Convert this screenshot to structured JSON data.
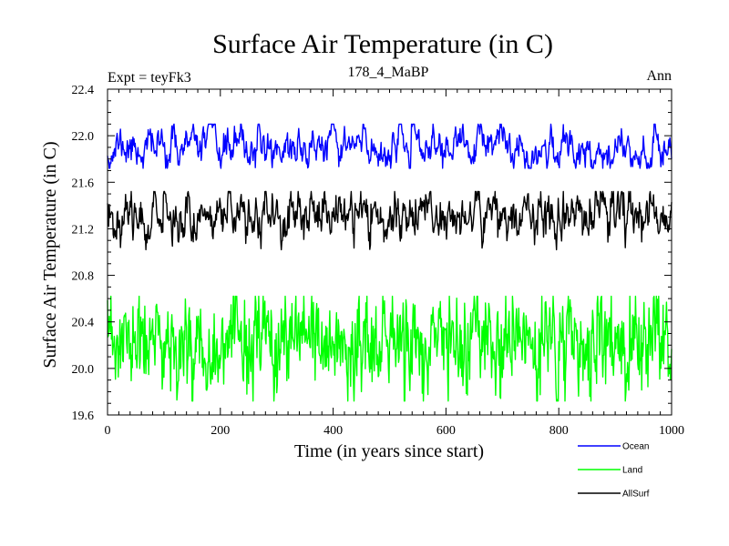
{
  "chart_data": {
    "type": "line",
    "title": "Surface Air Temperature (in C)",
    "subtitle": "178_4_MaBP",
    "left_note": "Expt = teyFk3",
    "right_note": "Ann",
    "xlabel": "Time (in years since start)",
    "ylabel": "Surface Air Temperature (in C)",
    "xlim": [
      0,
      1000
    ],
    "ylim": [
      19.6,
      22.4
    ],
    "x_ticks": [
      0,
      200,
      400,
      600,
      800,
      1000
    ],
    "x_tick_labels": [
      "0",
      "200",
      "400",
      "600",
      "800",
      "1000"
    ],
    "y_ticks": [
      19.6,
      20.0,
      20.4,
      20.8,
      21.2,
      21.6,
      22.0,
      22.4
    ],
    "y_tick_labels": [
      "19.6",
      "20.0",
      "20.4",
      "20.8",
      "21.2",
      "21.6",
      "22.0",
      "22.4"
    ],
    "legend_position": "bottom-right, outside plot",
    "x_start": 0,
    "x_step": 1,
    "series": [
      {
        "name": "Ocean",
        "color": "#0000ff",
        "mean": 21.9,
        "noise": 0.06,
        "smooth": 0.75,
        "min": 21.72,
        "max": 22.1,
        "seed": 11
      },
      {
        "name": "Land",
        "color": "#00ff00",
        "mean": 20.2,
        "noise": 0.13,
        "smooth": 0.35,
        "min": 19.72,
        "max": 20.62,
        "seed": 23
      },
      {
        "name": "AllSurf",
        "color": "#000000",
        "mean": 21.32,
        "noise": 0.07,
        "smooth": 0.65,
        "min": 21.02,
        "max": 21.52,
        "seed": 37
      }
    ]
  }
}
